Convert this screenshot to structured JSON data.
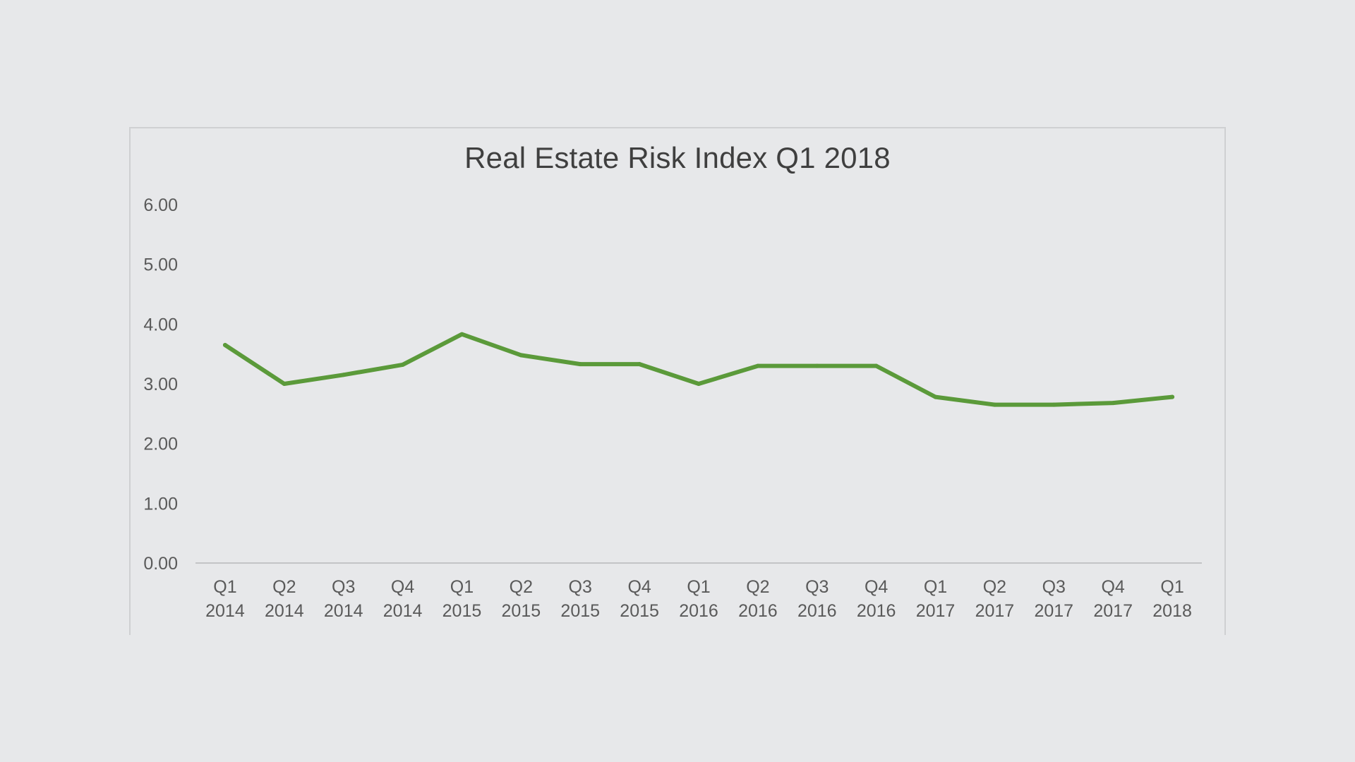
{
  "chart_data": {
    "type": "line",
    "title": "Real Estate Risk Index Q1 2018",
    "xlabel": "",
    "ylabel": "",
    "ylim": [
      0,
      6
    ],
    "yticks": [
      "0.00",
      "1.00",
      "2.00",
      "3.00",
      "4.00",
      "5.00",
      "6.00"
    ],
    "grid": false,
    "categories": [
      [
        "Q1",
        "2014"
      ],
      [
        "Q2",
        "2014"
      ],
      [
        "Q3",
        "2014"
      ],
      [
        "Q4",
        "2014"
      ],
      [
        "Q1",
        "2015"
      ],
      [
        "Q2",
        "2015"
      ],
      [
        "Q3",
        "2015"
      ],
      [
        "Q4",
        "2015"
      ],
      [
        "Q1",
        "2016"
      ],
      [
        "Q2",
        "2016"
      ],
      [
        "Q3",
        "2016"
      ],
      [
        "Q4",
        "2016"
      ],
      [
        "Q1",
        "2017"
      ],
      [
        "Q2",
        "2017"
      ],
      [
        "Q3",
        "2017"
      ],
      [
        "Q4",
        "2017"
      ],
      [
        "Q1",
        "2018"
      ]
    ],
    "series": [
      {
        "color": "#5b9a3a",
        "values": [
          3.65,
          3.0,
          3.15,
          3.32,
          3.83,
          3.48,
          3.33,
          3.33,
          3.0,
          3.3,
          3.3,
          3.3,
          2.78,
          2.65,
          2.65,
          2.68,
          2.78
        ]
      }
    ],
    "colors": {
      "axis": "#c3c4c6",
      "line": "#5b9a3a"
    }
  }
}
